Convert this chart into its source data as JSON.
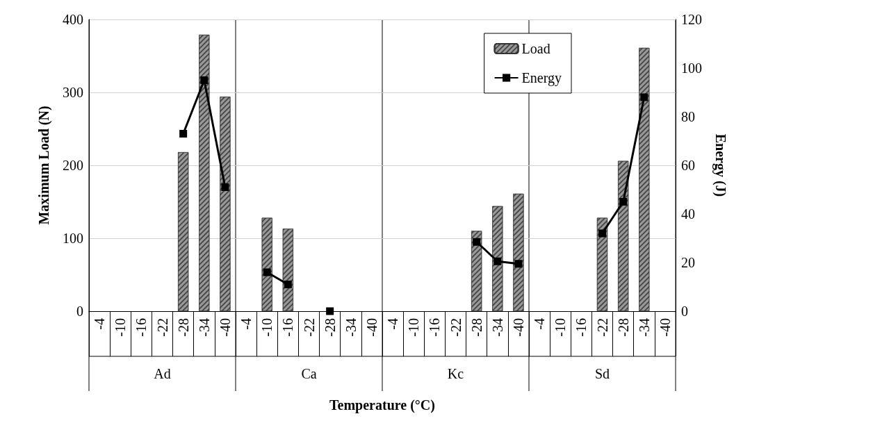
{
  "chart_data": {
    "type": "bar",
    "xlabel": "Temperature (°C)",
    "ylabel": "Maximum Load (N)",
    "y2label": "Energy (J)",
    "categories": [
      "-4",
      "-10",
      "-16",
      "-22",
      "-28",
      "-34",
      "-40",
      "-4",
      "-10",
      "-16",
      "-22",
      "-28",
      "-34",
      "-40",
      "-4",
      "-10",
      "-16",
      "-22",
      "-28",
      "-34",
      "-40",
      "-4",
      "-10",
      "-16",
      "-22",
      "-28",
      "-34",
      "-40"
    ],
    "annotations": [
      "Ad",
      "Ca",
      "Kc",
      "Sd"
    ],
    "series": [
      {
        "name": "Load",
        "color": "#9a9a9a",
        "values": [
          null,
          null,
          null,
          null,
          218,
          379,
          294,
          null,
          128,
          113,
          null,
          null,
          null,
          null,
          null,
          null,
          null,
          null,
          110,
          144,
          161,
          null,
          null,
          null,
          128,
          206,
          361,
          null
        ]
      },
      {
        "name": "Energy",
        "type": "line",
        "axis": "y2",
        "color": "#000000",
        "values": [
          null,
          null,
          null,
          null,
          73,
          95,
          51,
          null,
          16,
          11,
          null,
          0,
          null,
          null,
          null,
          null,
          null,
          null,
          28.5,
          20.5,
          19.5,
          null,
          null,
          null,
          32,
          45,
          88,
          null
        ]
      }
    ],
    "ylim": [
      0,
      400
    ],
    "yticks": [
      0,
      100,
      200,
      300,
      400
    ],
    "y2lim": [
      0,
      120
    ],
    "y2ticks": [
      0,
      20,
      40,
      60,
      80,
      100,
      120
    ],
    "grid": "y",
    "legend": "top right",
    "marker": "square",
    "line_style": "solid"
  }
}
